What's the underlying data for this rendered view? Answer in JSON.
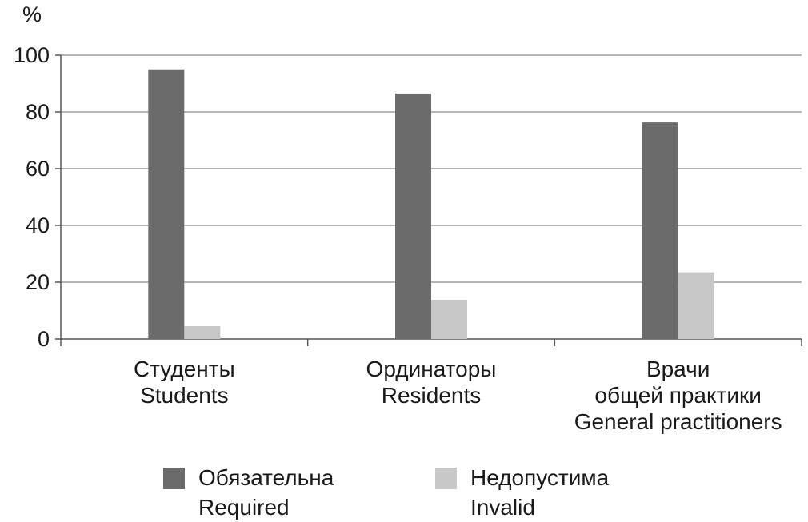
{
  "chart_data": {
    "type": "bar",
    "y_unit": "%",
    "ylim": [
      0,
      100
    ],
    "y_ticks": [
      0,
      20,
      40,
      60,
      80,
      100
    ],
    "grid": true,
    "legend_position": "bottom",
    "categories": [
      [
        "Студенты",
        "Students"
      ],
      [
        "Ординаторы",
        "Residents"
      ],
      [
        "Врачи",
        "общей практики",
        "General practitioners"
      ]
    ],
    "series": [
      {
        "name": [
          "Обязательна",
          "Required"
        ],
        "color": "#6b6b6b",
        "values": [
          95,
          86.5,
          76.3
        ]
      },
      {
        "name": [
          "Недопустима",
          "Invalid"
        ],
        "color": "#c8c8c8",
        "values": [
          4.5,
          13.8,
          23.5
        ]
      }
    ]
  }
}
